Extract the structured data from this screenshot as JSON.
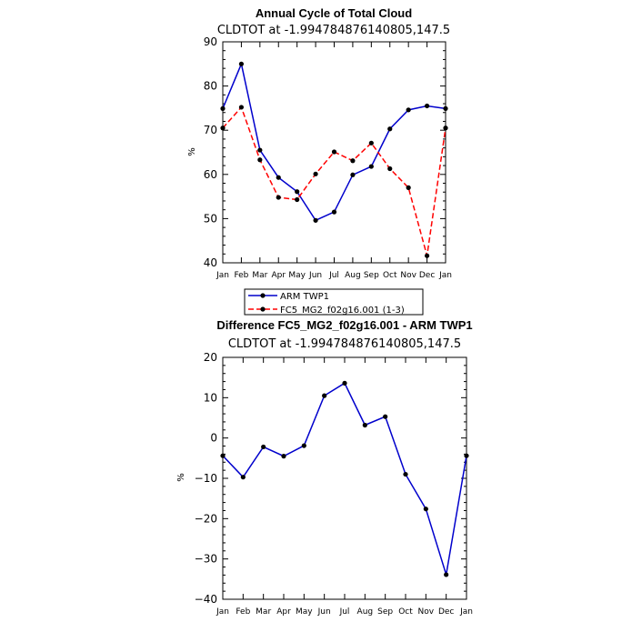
{
  "chart_data": [
    {
      "type": "line",
      "title": "Annual Cycle of Total Cloud",
      "subtitle": "CLDTOT at -1.994784876140805,147.5",
      "ylabel": "%",
      "xlabel": "",
      "categories": [
        "Jan",
        "Feb",
        "Mar",
        "Apr",
        "May",
        "Jun",
        "Jul",
        "Aug",
        "Sep",
        "Oct",
        "Nov",
        "Dec",
        "Jan"
      ],
      "ylim": [
        40,
        90
      ],
      "yticks": [
        40,
        50,
        60,
        70,
        80,
        90
      ],
      "grid": false,
      "legend_position": "bottom-center",
      "series": [
        {
          "name": "ARM TWP1",
          "color": "#0000cc",
          "dash": "solid",
          "values": [
            74.9,
            85.0,
            65.5,
            59.3,
            56.1,
            49.6,
            51.5,
            59.9,
            61.8,
            70.3,
            74.6,
            75.5,
            74.9
          ]
        },
        {
          "name": "FC5_MG2_f02g16.001 (1-3)",
          "color": "#ff0000",
          "dash": "dashed",
          "values": [
            70.5,
            75.2,
            63.3,
            54.8,
            54.3,
            60.1,
            65.1,
            63.1,
            67.1,
            61.3,
            57.0,
            41.6,
            70.5
          ]
        }
      ]
    },
    {
      "type": "line",
      "title": "Difference FC5_MG2_f02g16.001 - ARM TWP1",
      "subtitle": "CLDTOT at -1.994784876140805,147.5",
      "ylabel": "%",
      "xlabel": "",
      "categories": [
        "Jan",
        "Feb",
        "Mar",
        "Apr",
        "May",
        "Jun",
        "Jul",
        "Aug",
        "Sep",
        "Oct",
        "Nov",
        "Dec",
        "Jan"
      ],
      "ylim": [
        -40,
        20
      ],
      "yticks": [
        -40,
        -30,
        -20,
        -10,
        0,
        10,
        20
      ],
      "grid": false,
      "series": [
        {
          "color": "#0000cc",
          "dash": "solid",
          "values": [
            -4.4,
            -9.7,
            -2.2,
            -4.5,
            -1.9,
            10.5,
            13.6,
            3.2,
            5.3,
            -9.0,
            -17.6,
            -33.9,
            -4.4
          ]
        }
      ]
    }
  ]
}
